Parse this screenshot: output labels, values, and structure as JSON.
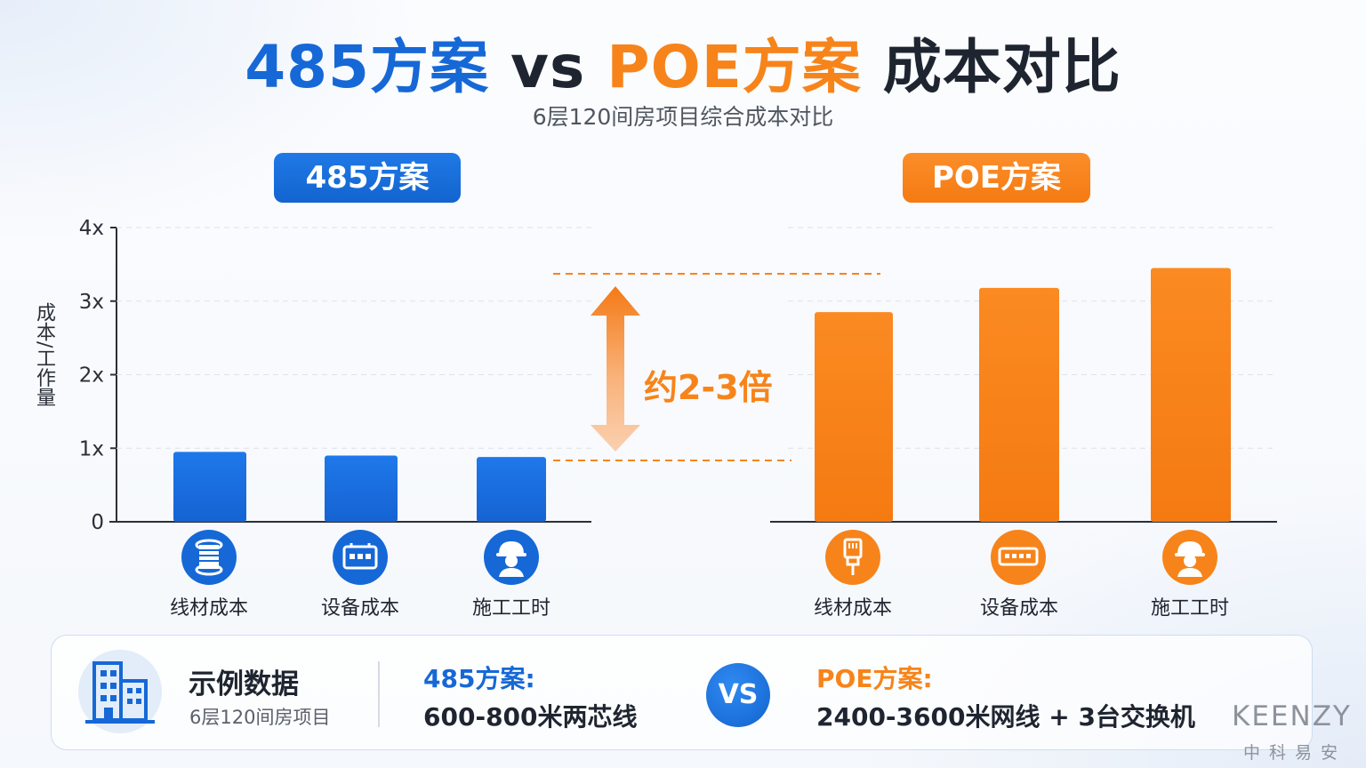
{
  "title": {
    "part1": "485方案",
    "part2": " vs ",
    "part3": "POE方案",
    "part4": " 成本对比"
  },
  "subtitle": "6层120间房项目综合成本对比",
  "groups": {
    "left_label": "485方案",
    "right_label": "POE方案"
  },
  "colors": {
    "blue": "#1668d6",
    "orange": "#f7841a"
  },
  "multiplier_label": "约2-3倍",
  "chart_data": {
    "type": "bar",
    "ylabel": "成本/工作量",
    "yticks": [
      "0",
      "1x",
      "2x",
      "3x",
      "4x"
    ],
    "ylim": [
      0,
      4
    ],
    "grid": true,
    "categories": [
      "线材成本",
      "设备成本",
      "施工工时"
    ],
    "series": [
      {
        "name": "485方案",
        "values": [
          0.95,
          0.9,
          0.88
        ],
        "color": "#1668d6"
      },
      {
        "name": "POE方案",
        "values": [
          2.85,
          3.18,
          3.45
        ],
        "color": "#f7841a"
      }
    ]
  },
  "category_icons": {
    "left": [
      "cable-reel-icon",
      "controller-device-icon",
      "worker-helmet-icon"
    ],
    "right": [
      "ethernet-plug-icon",
      "network-switch-icon",
      "worker-helmet-icon"
    ]
  },
  "sample": {
    "title": "示例数据",
    "subtitle": "6层120间房项目",
    "left_head": "485方案:",
    "left_body": "600-800米两芯线",
    "vs": "VS",
    "right_head": "POE方案:",
    "right_body": "2400-3600米网线 + 3台交换机"
  },
  "logo": {
    "main": "KEENZY",
    "sub": "中科易安"
  }
}
